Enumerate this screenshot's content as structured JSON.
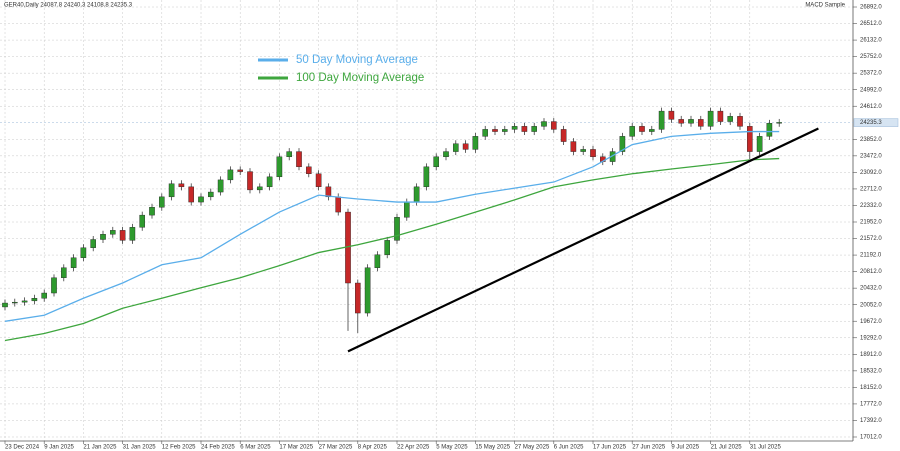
{
  "chart_data": {
    "type": "candlestick",
    "header": "GER40,Daily  24087.8 24240.3 24108.8 24235.3",
    "expert": "MACD Sample",
    "categories": [
      "23 Dec 2024",
      null,
      null,
      null,
      "9 Jan 2025",
      null,
      null,
      null,
      "21 Jan 2025",
      null,
      null,
      null,
      "31 Jan 2025",
      null,
      null,
      null,
      "12 Feb 2025",
      null,
      null,
      null,
      "24 Feb 2025",
      null,
      null,
      null,
      "6 Mar 2025",
      null,
      null,
      null,
      "17 Mar 2025",
      null,
      null,
      null,
      "27 Mar 2025",
      null,
      null,
      null,
      "8 Apr 2025",
      null,
      null,
      null,
      "22 Apr 2025",
      null,
      null,
      null,
      "5 May 2025",
      null,
      null,
      null,
      "15 May 2025",
      null,
      null,
      null,
      "27 May 2025",
      null,
      null,
      null,
      "6 Jun 2025",
      null,
      null,
      null,
      "17 Jun 2025",
      null,
      null,
      null,
      "27 Jun 2025",
      null,
      null,
      null,
      "9 Jul 2025",
      null,
      null,
      null,
      "21 Jul 2025",
      null,
      null,
      null,
      "31 Jul 2025",
      null,
      null,
      null
    ],
    "open": [
      20000,
      20090,
      20110,
      20140,
      20200,
      20320,
      20670,
      20900,
      21130,
      21360,
      21550,
      21670,
      21760,
      21530,
      21830,
      22110,
      22290,
      22530,
      22830,
      22760,
      22410,
      22530,
      22640,
      22920,
      23150,
      23110,
      22690,
      22760,
      22990,
      23450,
      23570,
      23220,
      23060,
      22760,
      22530,
      22180,
      20550,
      19860,
      20900,
      21200,
      21530,
      22060,
      22410,
      22760,
      23220,
      23450,
      23570,
      23750,
      23620,
      23920,
      24080,
      24030,
      24080,
      24150,
      24030,
      24150,
      24260,
      24080,
      23800,
      23570,
      23620,
      23450,
      23340,
      23570,
      23920,
      24150,
      24030,
      24080,
      24500,
      24310,
      24220,
      24310,
      24150,
      24500,
      24260,
      24380,
      24150,
      23570,
      23920,
      24220
    ],
    "high": [
      20170,
      20190,
      20220,
      20280,
      20400,
      20750,
      20980,
      21210,
      21440,
      21630,
      21750,
      21840,
      21840,
      21910,
      22190,
      22370,
      22610,
      22910,
      22910,
      22840,
      22610,
      22720,
      23000,
      23230,
      23230,
      23190,
      22840,
      23070,
      23530,
      23650,
      23650,
      23300,
      23140,
      22840,
      22610,
      22260,
      20630,
      20980,
      21280,
      21610,
      22140,
      22490,
      22840,
      23300,
      23530,
      23650,
      23830,
      23830,
      24000,
      24160,
      24160,
      24160,
      24230,
      24230,
      24230,
      24340,
      24340,
      24160,
      23880,
      23700,
      23700,
      23530,
      23650,
      24000,
      24230,
      24230,
      24160,
      24580,
      24580,
      24390,
      24390,
      24390,
      24580,
      24580,
      24460,
      24460,
      24230,
      24000,
      24300,
      24320
    ],
    "low": [
      19920,
      20010,
      20030,
      20060,
      20120,
      20240,
      20590,
      20820,
      21050,
      21280,
      21470,
      21590,
      21450,
      21450,
      21750,
      22030,
      22210,
      22450,
      22680,
      22330,
      22330,
      22450,
      22560,
      22840,
      23030,
      22610,
      22610,
      22680,
      22910,
      23370,
      23140,
      22980,
      22680,
      22450,
      22100,
      19450,
      19400,
      19780,
      20820,
      21120,
      21450,
      21980,
      22330,
      22680,
      23140,
      23370,
      23490,
      23540,
      23540,
      23840,
      23950,
      23950,
      24000,
      23950,
      23950,
      24070,
      24000,
      23720,
      23490,
      23490,
      23370,
      23260,
      23260,
      23490,
      23840,
      23950,
      23950,
      24000,
      24230,
      24140,
      24140,
      24070,
      24070,
      24180,
      24180,
      24070,
      23400,
      23490,
      23840,
      24140
    ],
    "close": [
      20090,
      20110,
      20140,
      20200,
      20320,
      20670,
      20900,
      21130,
      21360,
      21550,
      21670,
      21760,
      21530,
      21830,
      22110,
      22290,
      22530,
      22830,
      22760,
      22410,
      22530,
      22640,
      22920,
      23150,
      23110,
      22690,
      22760,
      22990,
      23450,
      23570,
      23220,
      23060,
      22760,
      22530,
      22180,
      20550,
      19860,
      20900,
      21200,
      21530,
      22060,
      22410,
      22760,
      23220,
      23450,
      23570,
      23750,
      23620,
      23920,
      24080,
      24030,
      24080,
      24150,
      24030,
      24150,
      24260,
      24080,
      23800,
      23570,
      23620,
      23450,
      23340,
      23570,
      23920,
      24150,
      24030,
      24080,
      24500,
      24310,
      24220,
      24310,
      24150,
      24500,
      24260,
      24380,
      24150,
      23570,
      23920,
      24220,
      24240
    ],
    "up_color": "#2e9a2e",
    "down_color": "#c62828",
    "series": [
      {
        "name": "50 Day Moving Average",
        "color": "#5aaeea",
        "x": [
          0,
          4,
          8,
          12,
          16,
          20,
          24,
          28,
          32,
          36,
          40,
          44,
          48,
          52,
          56,
          60,
          64,
          68,
          72,
          76,
          79
        ],
        "values": [
          19670,
          19810,
          20200,
          20550,
          20970,
          21130,
          21670,
          22180,
          22570,
          22480,
          22410,
          22410,
          22590,
          22730,
          22870,
          23220,
          23730,
          23920,
          23990,
          24030,
          24030
        ]
      },
      {
        "name": "100 Day Moving Average",
        "color": "#3ea63e",
        "x": [
          0,
          4,
          8,
          12,
          16,
          20,
          24,
          28,
          32,
          36,
          40,
          44,
          48,
          52,
          56,
          60,
          64,
          68,
          72,
          76,
          79
        ],
        "values": [
          19230,
          19390,
          19620,
          19970,
          20200,
          20440,
          20670,
          20950,
          21250,
          21430,
          21640,
          21900,
          22180,
          22460,
          22760,
          22920,
          23060,
          23170,
          23270,
          23380,
          23410
        ]
      }
    ],
    "trendline": {
      "x": [
        35,
        83
      ],
      "values": [
        18980,
        24100
      ],
      "color": "#000000"
    },
    "last_price": 24235.3,
    "ylim": [
      16920,
      27053
    ],
    "yticks": [
      {
        "value": 26892,
        "label": "26892.0"
      },
      {
        "value": 26512,
        "label": "26512.0"
      },
      {
        "value": 26132,
        "label": "26132.0"
      },
      {
        "value": 25752,
        "label": "25752.0"
      },
      {
        "value": 25372,
        "label": "25372.0"
      },
      {
        "value": 24992,
        "label": "24992.0"
      },
      {
        "value": 24612,
        "label": "24612.0"
      },
      {
        "value": 23852,
        "label": "23852.0"
      },
      {
        "value": 23472,
        "label": "23472.0"
      },
      {
        "value": 23092,
        "label": "23092.0"
      },
      {
        "value": 22712,
        "label": "22712.0"
      },
      {
        "value": 22332,
        "label": "22332.0"
      },
      {
        "value": 21952,
        "label": "21952.0"
      },
      {
        "value": 21572,
        "label": "21572.0"
      },
      {
        "value": 21192,
        "label": "21192.0"
      },
      {
        "value": 20812,
        "label": "20812.0"
      },
      {
        "value": 20432,
        "label": "20432.0"
      },
      {
        "value": 20052,
        "label": "20052.0"
      },
      {
        "value": 19672,
        "label": "19672.0"
      },
      {
        "value": 19292,
        "label": "19292.0"
      },
      {
        "value": 18912,
        "label": "18912.0"
      },
      {
        "value": 18532,
        "label": "18532.0"
      },
      {
        "value": 18152,
        "label": "18152.0"
      },
      {
        "value": 17772,
        "label": "17772.0"
      },
      {
        "value": 17392,
        "label": "17392.0"
      },
      {
        "value": 17012,
        "label": "17012.0"
      }
    ],
    "grid": true
  }
}
